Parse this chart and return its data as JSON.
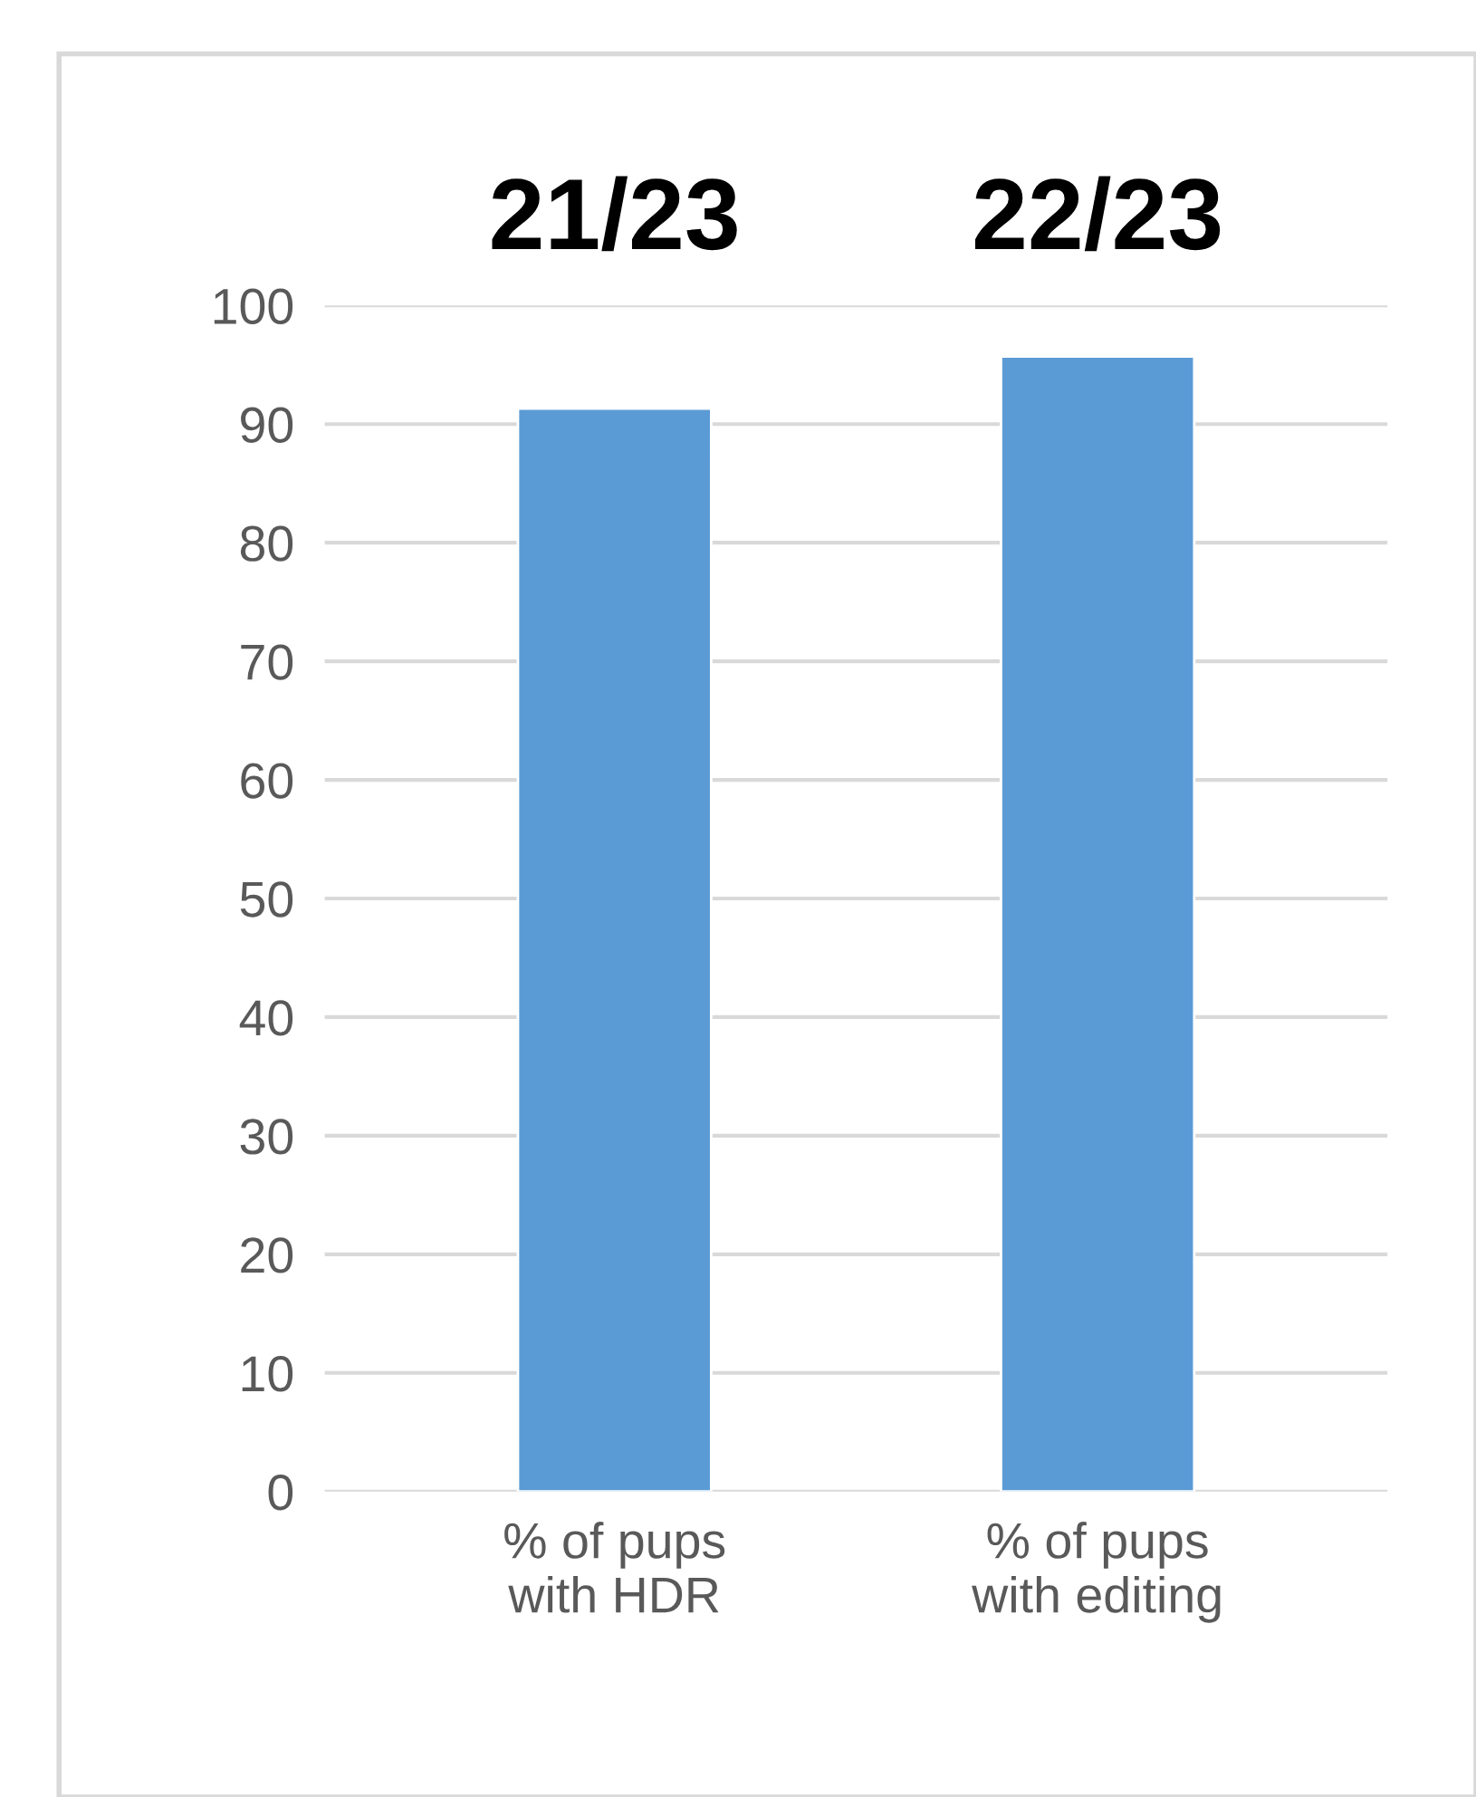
{
  "chart_data": {
    "type": "bar",
    "categories": [
      "% of pups\nwith HDR",
      "% of pups\nwith editing"
    ],
    "values": [
      91.3,
      95.7
    ],
    "value_labels": [
      "21/23",
      "22/23"
    ],
    "color": "#5b9bd5",
    "ylim": [
      0,
      100
    ],
    "yticks": [
      0,
      10,
      20,
      30,
      40,
      50,
      60,
      70,
      80,
      90,
      100
    ],
    "grid": "y"
  }
}
